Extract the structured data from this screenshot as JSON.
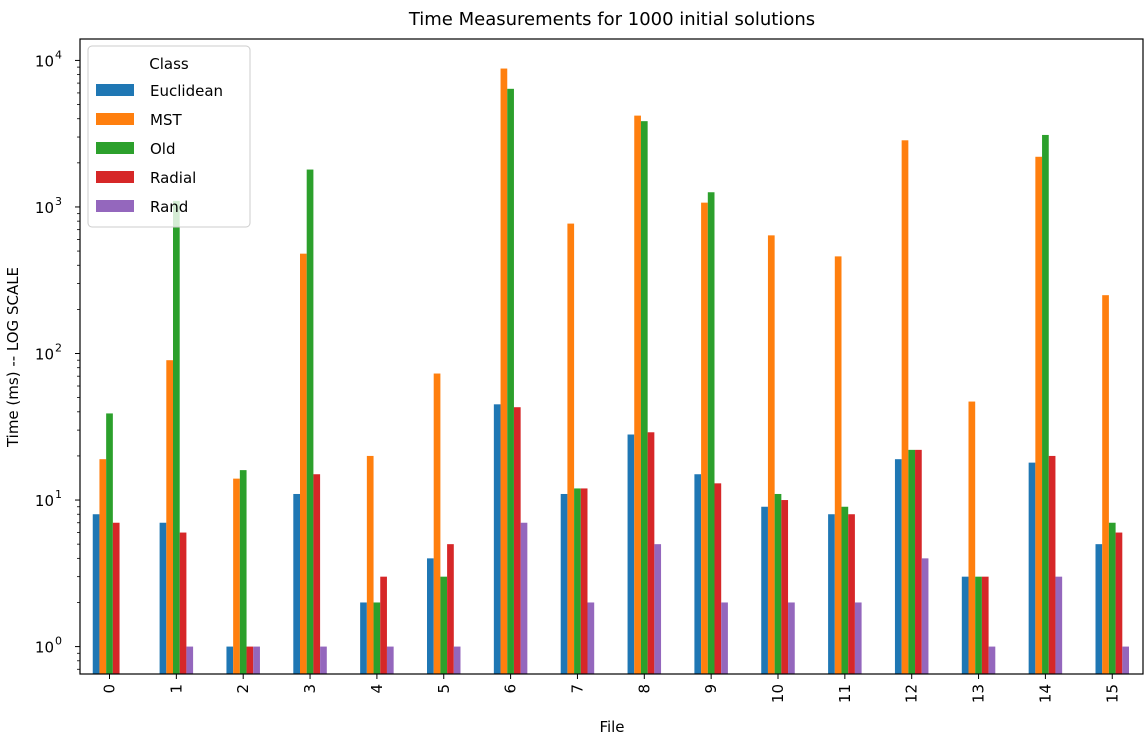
{
  "chart_data": {
    "type": "bar",
    "title": "Time Measurements for 1000 initial solutions",
    "xlabel": "File",
    "ylabel": "Time (ms) -- LOG SCALE",
    "yscale": "log",
    "ylim": [
      0.65,
      14000
    ],
    "grid": false,
    "legend": {
      "title": "Class",
      "placement": "top-left"
    },
    "categories": [
      "0",
      "1",
      "2",
      "3",
      "4",
      "5",
      "6",
      "7",
      "8",
      "9",
      "10",
      "11",
      "12",
      "13",
      "14",
      "15"
    ],
    "y_ticks": [
      {
        "base": "10",
        "exp": "0"
      },
      {
        "base": "10",
        "exp": "1"
      },
      {
        "base": "10",
        "exp": "2"
      },
      {
        "base": "10",
        "exp": "3"
      },
      {
        "base": "10",
        "exp": "4"
      }
    ],
    "series": [
      {
        "name": "Euclidean",
        "color": "#1f77b4",
        "values": [
          8,
          7,
          1,
          11,
          2,
          4,
          45,
          11,
          28,
          15,
          9,
          8,
          19,
          3,
          18,
          5
        ]
      },
      {
        "name": "MST",
        "color": "#ff7f0e",
        "values": [
          19,
          90,
          14,
          480,
          20,
          73,
          8800,
          770,
          4200,
          1070,
          640,
          460,
          2850,
          47,
          2200,
          250
        ]
      },
      {
        "name": "Old",
        "color": "#2ca02c",
        "values": [
          39,
          1100,
          16,
          1800,
          2,
          3,
          6400,
          12,
          3850,
          1260,
          11,
          9,
          22,
          3,
          3100,
          7
        ]
      },
      {
        "name": "Radial",
        "color": "#d62728",
        "values": [
          7,
          6,
          1,
          15,
          3,
          5,
          43,
          12,
          29,
          13,
          10,
          8,
          22,
          3,
          20,
          6
        ]
      },
      {
        "name": "Rand",
        "color": "#9467bd",
        "values": [
          null,
          1,
          1,
          1,
          1,
          1,
          7,
          2,
          5,
          2,
          2,
          2,
          4,
          1,
          3,
          1
        ]
      }
    ]
  }
}
